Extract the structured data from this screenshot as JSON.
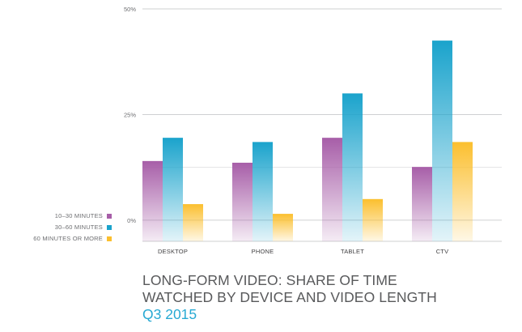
{
  "chart_data": {
    "type": "bar",
    "categories": [
      "DESKTOP",
      "PHONE",
      "TABLET",
      "CTV"
    ],
    "series": [
      {
        "name": "10–30 MINUTES",
        "values": [
          14,
          13.6,
          19.5,
          12.6
        ],
        "color": "#a75ea8"
      },
      {
        "name": "30–60 MINUTES",
        "values": [
          19.5,
          18.5,
          30,
          42.5
        ],
        "color": "#1aa3cc"
      },
      {
        "name": "60 MINUTES OR MORE",
        "values": [
          3.8,
          1.5,
          5,
          18.5
        ],
        "color": "#fbbf2e"
      }
    ],
    "y_ticks": [
      {
        "label": "0%",
        "value": 0
      },
      {
        "label": "25%",
        "value": 25
      },
      {
        "label": "50%",
        "value": 50
      }
    ],
    "ylim": [
      -5,
      50
    ],
    "grid": true,
    "legend_position": "left"
  },
  "caption": {
    "title_line1": "LONG-FORM VIDEO: SHARE OF TIME",
    "title_line2": "WATCHED BY DEVICE AND VIDEO LENGTH",
    "subtitle": "Q3 2015"
  }
}
